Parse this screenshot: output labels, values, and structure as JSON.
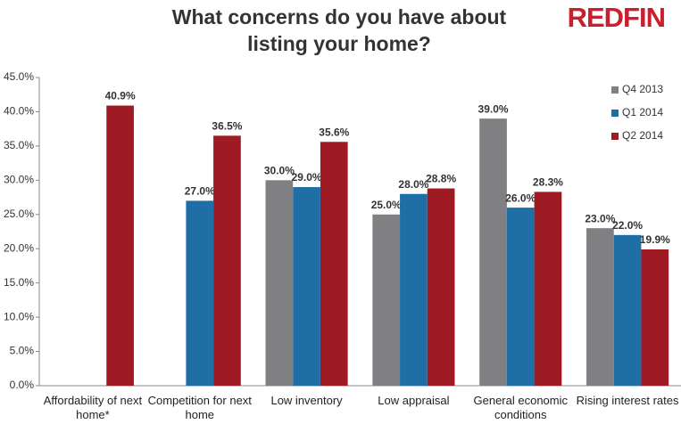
{
  "logo": "REDFIN",
  "chart_data": {
    "type": "bar",
    "title": "What concerns do you have about listing your home?",
    "categories": [
      "Affordability of next home*",
      "Competition for next home",
      "Low inventory",
      "Low appraisal",
      "General economic conditions",
      "Rising interest rates"
    ],
    "series": [
      {
        "name": "Q4 2013",
        "color": "#808082",
        "values": [
          null,
          null,
          30.0,
          25.0,
          39.0,
          23.0
        ],
        "value_labels": [
          null,
          null,
          "30.0%",
          "25.0%",
          "39.0%",
          "23.0%"
        ]
      },
      {
        "name": "Q1 2014",
        "color": "#1f6fa6",
        "values": [
          null,
          27.0,
          29.0,
          28.0,
          26.0,
          22.0
        ],
        "value_labels": [
          null,
          "27.0%",
          "29.0%",
          "28.0%",
          "26.0%",
          "22.0%"
        ]
      },
      {
        "name": "Q2 2014",
        "color": "#9e1b24",
        "values": [
          40.9,
          36.5,
          35.6,
          28.8,
          28.3,
          19.9
        ],
        "value_labels": [
          "40.9%",
          "36.5%",
          "35.6%",
          "28.8%",
          "28.3%",
          "19.9%"
        ]
      }
    ],
    "ylim": [
      0,
      45
    ],
    "yticks": [
      {
        "value": 0,
        "label": "0.0%"
      },
      {
        "value": 5,
        "label": "5.0%"
      },
      {
        "value": 10,
        "label": "10.0%"
      },
      {
        "value": 15,
        "label": "15.0%"
      },
      {
        "value": 20,
        "label": "20.0%"
      },
      {
        "value": 25,
        "label": "25.0%"
      },
      {
        "value": 30,
        "label": "30.0%"
      },
      {
        "value": 35,
        "label": "35.0%"
      },
      {
        "value": 40,
        "label": "40.0%"
      },
      {
        "value": 45,
        "label": "45.0%"
      }
    ],
    "grid": false,
    "legend": "top-right"
  }
}
